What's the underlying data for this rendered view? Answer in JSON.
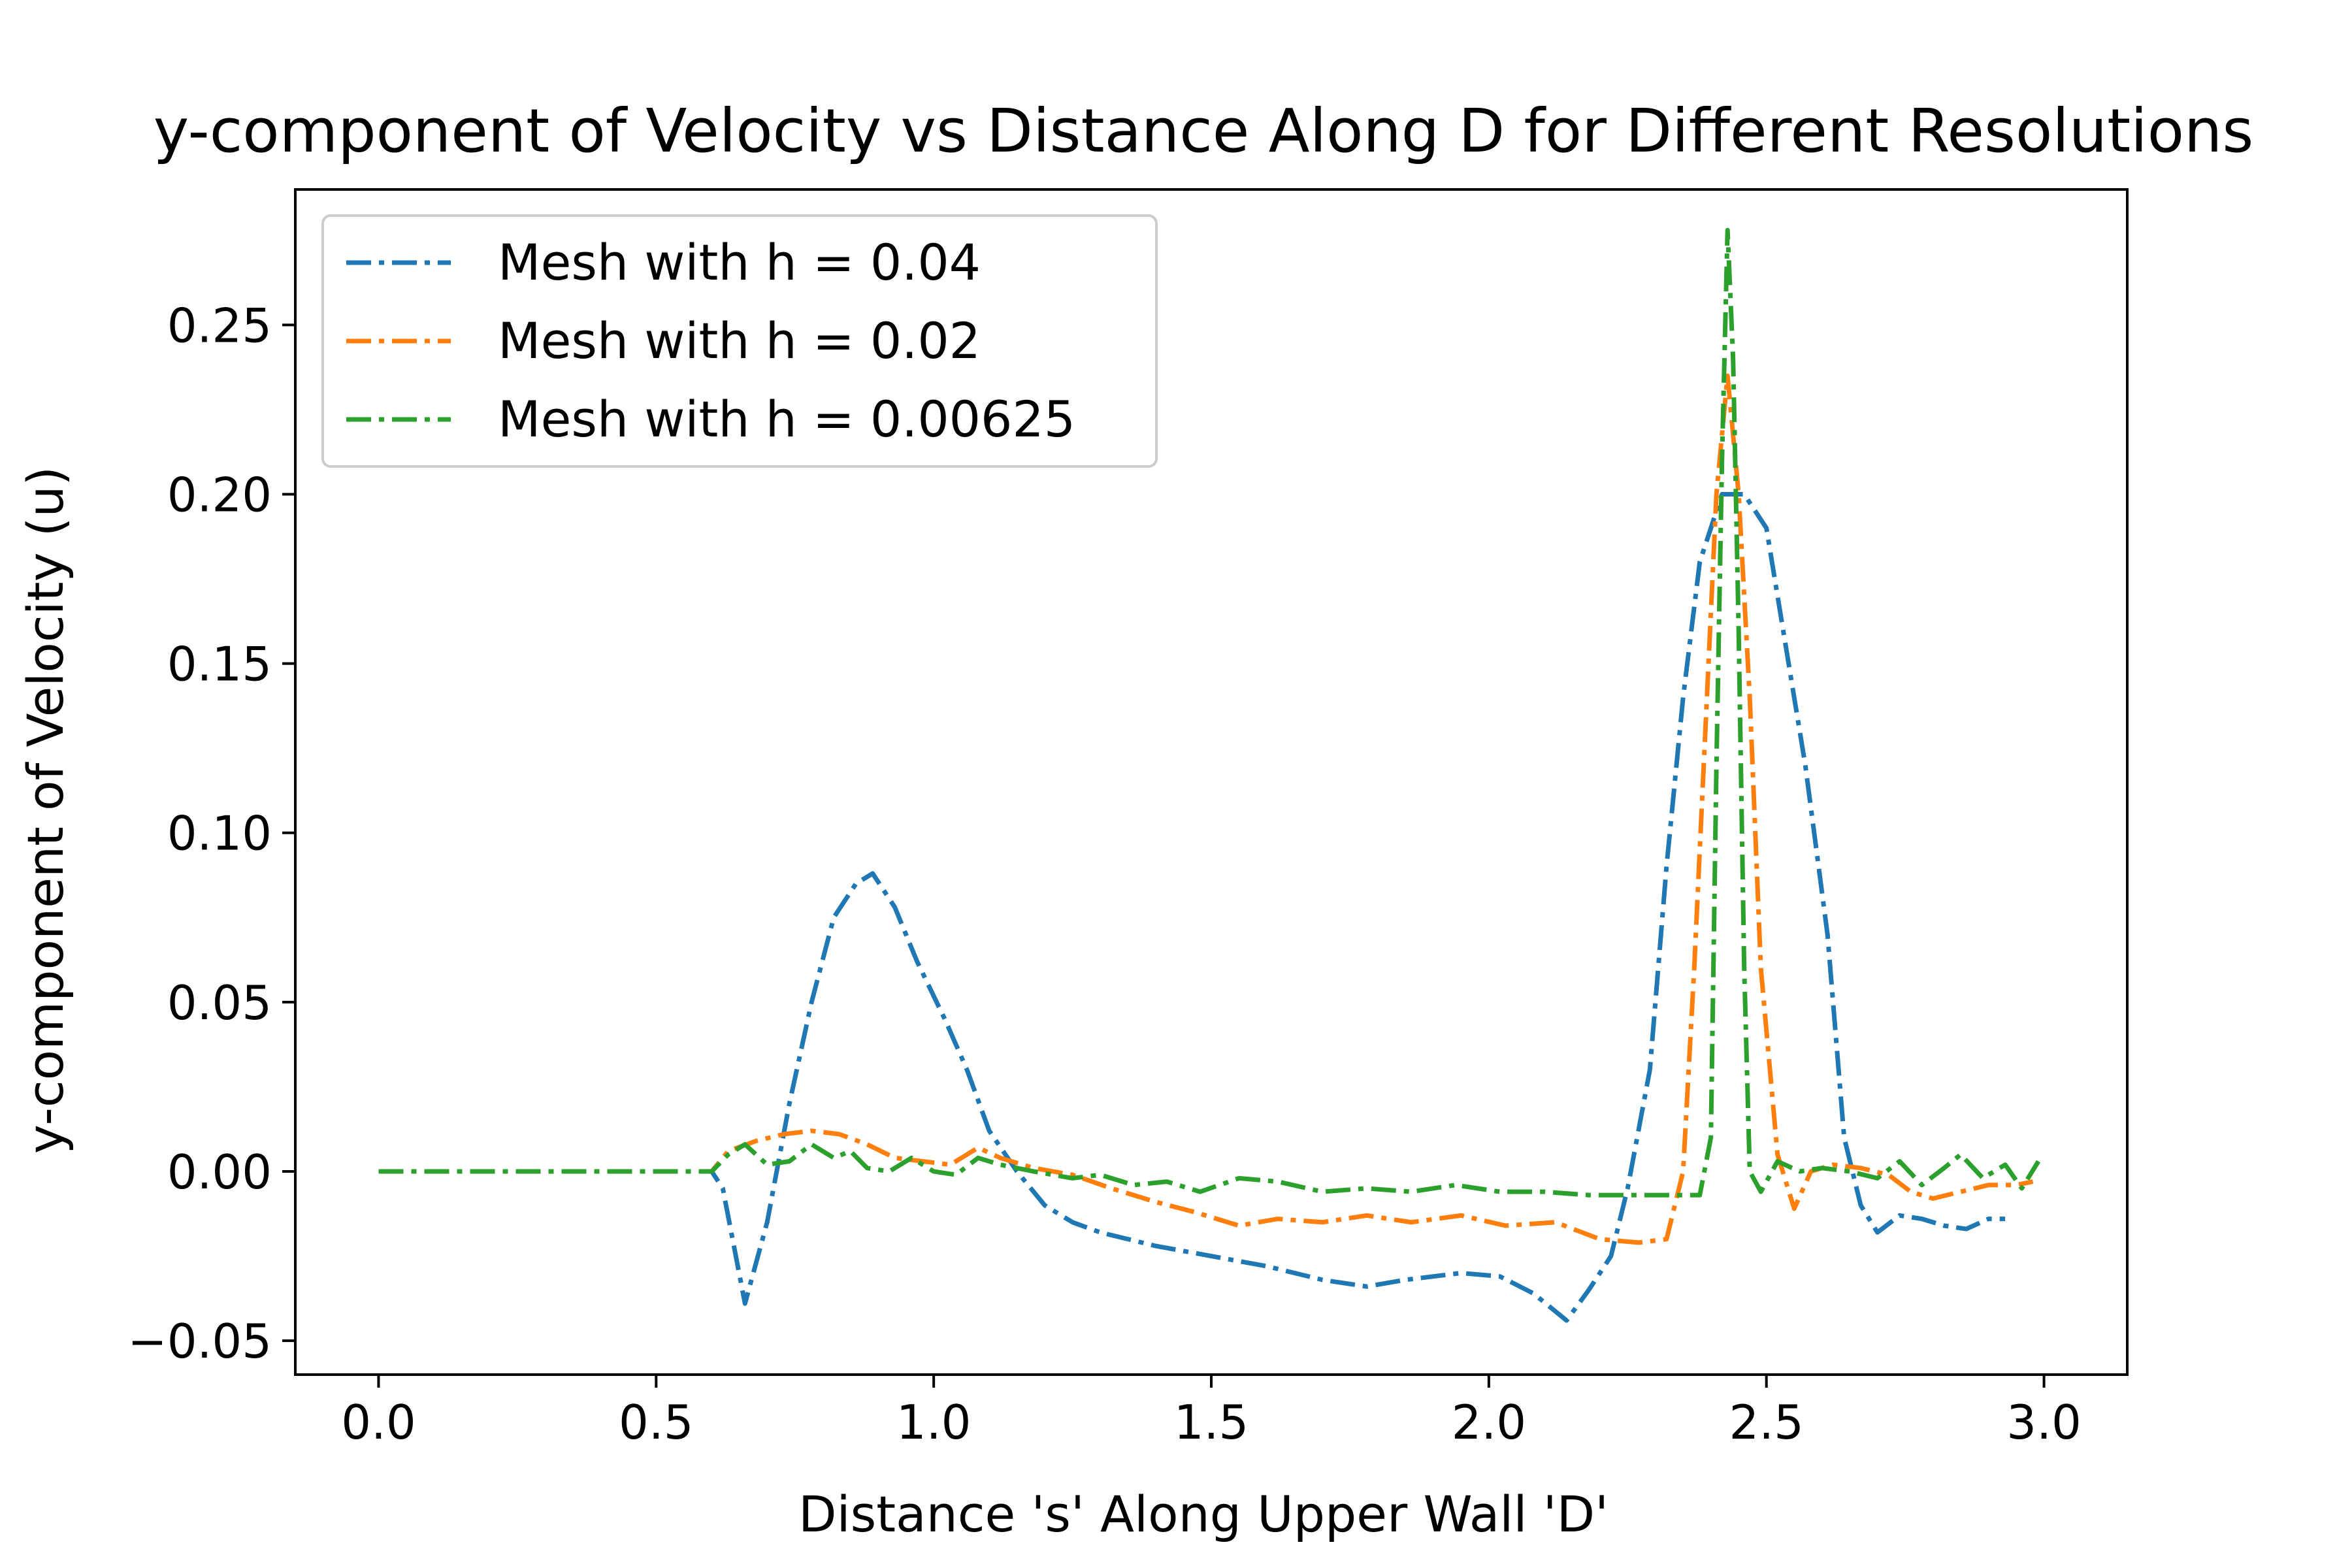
{
  "chart_data": {
    "type": "line",
    "title": "y-component of Velocity vs Distance Along D for Different Resolutions",
    "xlabel": "Distance 's' Along Upper Wall 'D'",
    "ylabel": "y-component of Velocity (u)",
    "xlim": [
      -0.15,
      3.15
    ],
    "ylim": [
      -0.06,
      0.29
    ],
    "xticks": [
      0.0,
      0.5,
      1.0,
      1.5,
      2.0,
      2.5,
      3.0
    ],
    "xtick_labels": [
      "0.0",
      "0.5",
      "1.0",
      "1.5",
      "2.0",
      "2.5",
      "3.0"
    ],
    "yticks": [
      -0.05,
      0.0,
      0.05,
      0.1,
      0.15,
      0.2,
      0.25
    ],
    "ytick_labels": [
      "−0.05",
      "0.00",
      "0.05",
      "0.10",
      "0.15",
      "0.20",
      "0.25"
    ],
    "grid": false,
    "legend_position": "upper-left",
    "line_style": "dash-dot",
    "series": [
      {
        "name": "Mesh with h = 0.04",
        "color": "#1f77b4",
        "points": [
          [
            0.0,
            0.0
          ],
          [
            0.1,
            0.0
          ],
          [
            0.2,
            0.0
          ],
          [
            0.3,
            0.0
          ],
          [
            0.4,
            0.0
          ],
          [
            0.5,
            0.0
          ],
          [
            0.6,
            0.0
          ],
          [
            0.62,
            -0.005
          ],
          [
            0.66,
            -0.039
          ],
          [
            0.7,
            -0.015
          ],
          [
            0.74,
            0.02
          ],
          [
            0.78,
            0.05
          ],
          [
            0.82,
            0.075
          ],
          [
            0.86,
            0.085
          ],
          [
            0.89,
            0.088
          ],
          [
            0.93,
            0.078
          ],
          [
            0.97,
            0.062
          ],
          [
            1.02,
            0.045
          ],
          [
            1.06,
            0.03
          ],
          [
            1.1,
            0.012
          ],
          [
            1.15,
            0.0
          ],
          [
            1.2,
            -0.01
          ],
          [
            1.25,
            -0.015
          ],
          [
            1.3,
            -0.018
          ],
          [
            1.4,
            -0.022
          ],
          [
            1.5,
            -0.025
          ],
          [
            1.6,
            -0.028
          ],
          [
            1.7,
            -0.032
          ],
          [
            1.78,
            -0.034
          ],
          [
            1.85,
            -0.032
          ],
          [
            1.95,
            -0.03
          ],
          [
            2.02,
            -0.031
          ],
          [
            2.08,
            -0.036
          ],
          [
            2.14,
            -0.044
          ],
          [
            2.18,
            -0.035
          ],
          [
            2.22,
            -0.025
          ],
          [
            2.25,
            -0.005
          ],
          [
            2.29,
            0.03
          ],
          [
            2.32,
            0.09
          ],
          [
            2.35,
            0.14
          ],
          [
            2.38,
            0.18
          ],
          [
            2.42,
            0.2
          ],
          [
            2.46,
            0.2
          ],
          [
            2.5,
            0.19
          ],
          [
            2.53,
            0.16
          ],
          [
            2.57,
            0.12
          ],
          [
            2.61,
            0.07
          ],
          [
            2.64,
            0.01
          ],
          [
            2.67,
            -0.01
          ],
          [
            2.7,
            -0.018
          ],
          [
            2.74,
            -0.013
          ],
          [
            2.78,
            -0.014
          ],
          [
            2.82,
            -0.016
          ],
          [
            2.86,
            -0.017
          ],
          [
            2.9,
            -0.014
          ],
          [
            2.93,
            -0.014
          ]
        ]
      },
      {
        "name": "Mesh with h = 0.02",
        "color": "#ff7f0e",
        "points": [
          [
            0.0,
            0.0
          ],
          [
            0.1,
            0.0
          ],
          [
            0.2,
            0.0
          ],
          [
            0.3,
            0.0
          ],
          [
            0.4,
            0.0
          ],
          [
            0.5,
            0.0
          ],
          [
            0.6,
            0.0
          ],
          [
            0.63,
            0.006
          ],
          [
            0.68,
            0.009
          ],
          [
            0.73,
            0.011
          ],
          [
            0.78,
            0.012
          ],
          [
            0.83,
            0.011
          ],
          [
            0.88,
            0.008
          ],
          [
            0.93,
            0.004
          ],
          [
            0.98,
            0.003
          ],
          [
            1.03,
            0.002
          ],
          [
            1.08,
            0.007
          ],
          [
            1.12,
            0.004
          ],
          [
            1.18,
            0.001
          ],
          [
            1.25,
            -0.001
          ],
          [
            1.32,
            -0.005
          ],
          [
            1.4,
            -0.009
          ],
          [
            1.47,
            -0.012
          ],
          [
            1.55,
            -0.016
          ],
          [
            1.62,
            -0.014
          ],
          [
            1.7,
            -0.015
          ],
          [
            1.78,
            -0.013
          ],
          [
            1.86,
            -0.015
          ],
          [
            1.95,
            -0.013
          ],
          [
            2.03,
            -0.016
          ],
          [
            2.12,
            -0.015
          ],
          [
            2.2,
            -0.02
          ],
          [
            2.27,
            -0.021
          ],
          [
            2.32,
            -0.02
          ],
          [
            2.35,
            0.0
          ],
          [
            2.37,
            0.06
          ],
          [
            2.39,
            0.13
          ],
          [
            2.41,
            0.2
          ],
          [
            2.43,
            0.235
          ],
          [
            2.45,
            0.2
          ],
          [
            2.47,
            0.14
          ],
          [
            2.49,
            0.06
          ],
          [
            2.52,
            0.005
          ],
          [
            2.55,
            -0.011
          ],
          [
            2.58,
            0.0
          ],
          [
            2.62,
            0.002
          ],
          [
            2.67,
            0.001
          ],
          [
            2.72,
            -0.001
          ],
          [
            2.76,
            -0.006
          ],
          [
            2.8,
            -0.008
          ],
          [
            2.85,
            -0.006
          ],
          [
            2.9,
            -0.004
          ],
          [
            2.95,
            -0.004
          ],
          [
            2.98,
            -0.003
          ]
        ]
      },
      {
        "name": "Mesh with h = 0.00625",
        "color": "#2ca02c",
        "points": [
          [
            0.0,
            0.0
          ],
          [
            0.1,
            0.0
          ],
          [
            0.2,
            0.0
          ],
          [
            0.3,
            0.0
          ],
          [
            0.4,
            0.0
          ],
          [
            0.5,
            0.0
          ],
          [
            0.6,
            0.0
          ],
          [
            0.63,
            0.005
          ],
          [
            0.66,
            0.008
          ],
          [
            0.7,
            0.002
          ],
          [
            0.74,
            0.003
          ],
          [
            0.78,
            0.008
          ],
          [
            0.82,
            0.004
          ],
          [
            0.85,
            0.006
          ],
          [
            0.88,
            0.001
          ],
          [
            0.92,
            0.0
          ],
          [
            0.96,
            0.004
          ],
          [
            1.0,
            0.0
          ],
          [
            1.04,
            -0.001
          ],
          [
            1.08,
            0.004
          ],
          [
            1.12,
            0.002
          ],
          [
            1.18,
            0.0
          ],
          [
            1.25,
            -0.002
          ],
          [
            1.3,
            -0.001
          ],
          [
            1.36,
            -0.004
          ],
          [
            1.42,
            -0.003
          ],
          [
            1.48,
            -0.006
          ],
          [
            1.55,
            -0.002
          ],
          [
            1.62,
            -0.003
          ],
          [
            1.7,
            -0.006
          ],
          [
            1.78,
            -0.005
          ],
          [
            1.86,
            -0.006
          ],
          [
            1.94,
            -0.004
          ],
          [
            2.02,
            -0.006
          ],
          [
            2.1,
            -0.006
          ],
          [
            2.18,
            -0.007
          ],
          [
            2.26,
            -0.007
          ],
          [
            2.34,
            -0.007
          ],
          [
            2.38,
            -0.007
          ],
          [
            2.4,
            0.01
          ],
          [
            2.41,
            0.12
          ],
          [
            2.42,
            0.21
          ],
          [
            2.43,
            0.278
          ],
          [
            2.44,
            0.24
          ],
          [
            2.45,
            0.16
          ],
          [
            2.46,
            0.06
          ],
          [
            2.47,
            0.0
          ],
          [
            2.49,
            -0.006
          ],
          [
            2.52,
            0.003
          ],
          [
            2.56,
            0.0
          ],
          [
            2.6,
            0.001
          ],
          [
            2.65,
            0.0
          ],
          [
            2.7,
            -0.002
          ],
          [
            2.74,
            0.003
          ],
          [
            2.78,
            -0.004
          ],
          [
            2.82,
            0.001
          ],
          [
            2.85,
            0.005
          ],
          [
            2.89,
            -0.002
          ],
          [
            2.93,
            0.002
          ],
          [
            2.96,
            -0.005
          ],
          [
            2.99,
            0.003
          ]
        ]
      }
    ]
  }
}
